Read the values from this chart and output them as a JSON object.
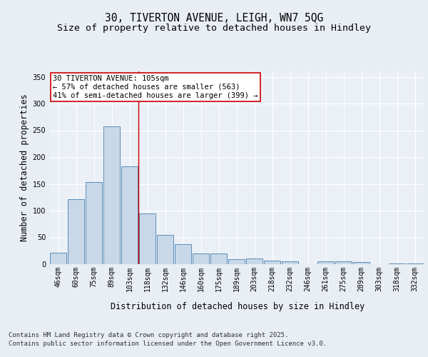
{
  "title_line1": "30, TIVERTON AVENUE, LEIGH, WN7 5QG",
  "title_line2": "Size of property relative to detached houses in Hindley",
  "xlabel": "Distribution of detached houses by size in Hindley",
  "ylabel": "Number of detached properties",
  "categories": [
    "46sqm",
    "60sqm",
    "75sqm",
    "89sqm",
    "103sqm",
    "118sqm",
    "132sqm",
    "146sqm",
    "160sqm",
    "175sqm",
    "189sqm",
    "203sqm",
    "218sqm",
    "232sqm",
    "246sqm",
    "261sqm",
    "275sqm",
    "289sqm",
    "303sqm",
    "318sqm",
    "332sqm"
  ],
  "values": [
    22,
    122,
    153,
    257,
    183,
    95,
    55,
    38,
    20,
    20,
    10,
    11,
    7,
    6,
    0,
    5,
    5,
    4,
    0,
    1,
    1
  ],
  "bar_color": "#c8d8e8",
  "bar_edge_color": "#5b8db8",
  "vline_x": 4.5,
  "vline_color": "#cc0000",
  "annotation_text": "30 TIVERTON AVENUE: 105sqm\n← 57% of detached houses are smaller (563)\n41% of semi-detached houses are larger (399) →",
  "annotation_box_color": "#ffffff",
  "annotation_box_edge": "#cc0000",
  "ylim": [
    0,
    360
  ],
  "yticks": [
    0,
    50,
    100,
    150,
    200,
    250,
    300,
    350
  ],
  "bg_color": "#e8eef4",
  "plot_bg_color": "#eaf0f6",
  "grid_color": "#ffffff",
  "footer_line1": "Contains HM Land Registry data © Crown copyright and database right 2025.",
  "footer_line2": "Contains public sector information licensed under the Open Government Licence v3.0.",
  "title_fontsize": 10.5,
  "subtitle_fontsize": 9.5,
  "axis_label_fontsize": 8.5,
  "tick_fontsize": 7,
  "annotation_fontsize": 7.5,
  "footer_fontsize": 6.5
}
